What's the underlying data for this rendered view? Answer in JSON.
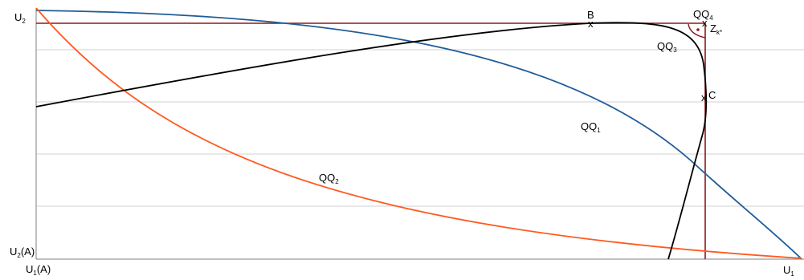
{
  "labels": {
    "u2": {
      "main": "U",
      "sub": "2"
    },
    "u2a": {
      "main": "U",
      "sub": "2",
      "suffix": "(A)"
    },
    "u1a": {
      "main": "U",
      "sub": "1",
      "suffix": "(A)"
    },
    "u1": {
      "main": "U",
      "sub": "1"
    },
    "qq1": {
      "main": "QQ",
      "sub": "1"
    },
    "qq2": {
      "main": "QQ",
      "sub": "2"
    },
    "qq3": {
      "main": "QQ",
      "sub": "3"
    },
    "qq4": {
      "main": "QQ",
      "sub": "4"
    },
    "zk": {
      "main": "Z",
      "sub": "k*"
    },
    "b": "B",
    "c": "C",
    "x_mark": "x"
  },
  "colors": {
    "qq1": "#1f5c99",
    "qq2": "#ff5a1f",
    "qq3": "#000000",
    "qq4": "#8b1a1a",
    "grid": "#d0d0d0",
    "axis": "#808080",
    "point": "#8b1a1a"
  }
}
